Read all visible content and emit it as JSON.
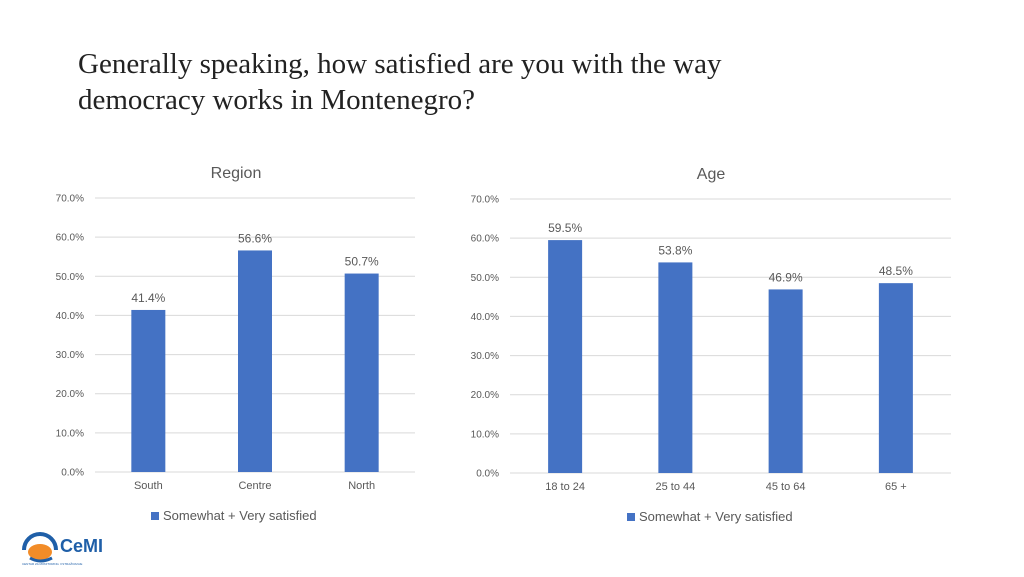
{
  "slide": {
    "title_line1": "Generally speaking, how satisfied are you with the way",
    "title_line2": "democracy works in Montenegro?"
  },
  "colors": {
    "bar": "#4472C4",
    "grid": "#D9D9D9",
    "axis_text": "#595959"
  },
  "chart_data": [
    {
      "type": "bar",
      "title": "Region",
      "categories": [
        "South",
        "Centre",
        "North"
      ],
      "series": [
        {
          "name": "Somewhat + Very satisfied",
          "values": [
            41.4,
            56.6,
            50.7
          ]
        }
      ],
      "data_labels": [
        "41.4%",
        "56.6%",
        "50.7%"
      ],
      "yticks": [
        "0.0%",
        "10.0%",
        "20.0%",
        "30.0%",
        "40.0%",
        "50.0%",
        "60.0%",
        "70.0%"
      ],
      "ylim": [
        0,
        70
      ],
      "grid": true,
      "legend": "bottom"
    },
    {
      "type": "bar",
      "title": "Age",
      "categories": [
        "18 to 24",
        "25 to 44",
        "45 to 64",
        "65 +"
      ],
      "series": [
        {
          "name": "Somewhat + Very satisfied",
          "values": [
            59.5,
            53.8,
            46.9,
            48.5
          ]
        }
      ],
      "data_labels": [
        "59.5%",
        "53.8%",
        "46.9%",
        "48.5%"
      ],
      "yticks": [
        "0.0%",
        "10.0%",
        "20.0%",
        "30.0%",
        "40.0%",
        "50.0%",
        "60.0%",
        "70.0%"
      ],
      "ylim": [
        0,
        70
      ],
      "grid": true,
      "legend": "bottom"
    }
  ],
  "logo": {
    "text": "CeMI",
    "subtext": "CENTAR ZA MONITORING I ISTRAŽIVANJE"
  }
}
